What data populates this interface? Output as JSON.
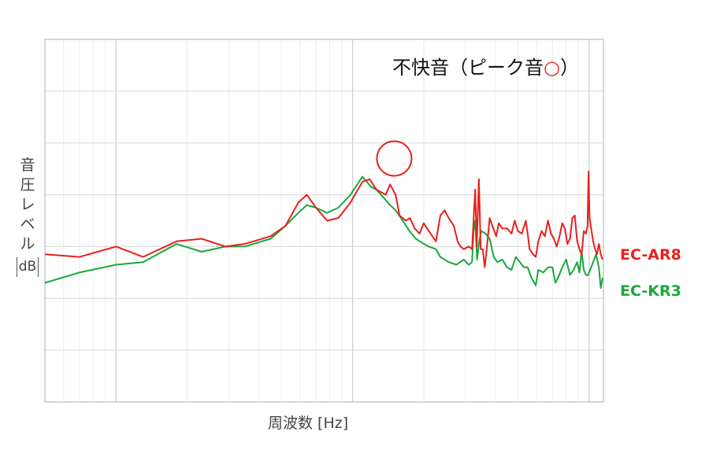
{
  "chart_data": {
    "type": "line",
    "title": "",
    "annotation": {
      "text": "不快音（ピーク音",
      "symbol": "○",
      "close": "）"
    },
    "xlabel": "周波数 [Hz]",
    "ylabel": {
      "chars": [
        "音",
        "圧",
        "レ",
        "ベ",
        "ル"
      ],
      "unit": "dB"
    },
    "x_scale": "log",
    "xlim": [
      0.5,
      115
    ],
    "ylim": [
      0,
      7
    ],
    "grid": true,
    "legend": "right",
    "peak_marker": {
      "x": 15,
      "y": 4.7
    },
    "series": [
      {
        "name": "EC-AR8",
        "color": "#e8201c",
        "points": [
          [
            0.5,
            2.85
          ],
          [
            0.7,
            2.8
          ],
          [
            1.0,
            3.0
          ],
          [
            1.3,
            2.8
          ],
          [
            1.8,
            3.1
          ],
          [
            2.3,
            3.15
          ],
          [
            2.9,
            3.0
          ],
          [
            3.5,
            3.05
          ],
          [
            4.5,
            3.2
          ],
          [
            5.2,
            3.4
          ],
          [
            5.9,
            3.85
          ],
          [
            6.4,
            4.0
          ],
          [
            7.0,
            3.75
          ],
          [
            7.8,
            3.5
          ],
          [
            8.7,
            3.55
          ],
          [
            9.8,
            3.85
          ],
          [
            11.0,
            4.25
          ],
          [
            11.8,
            4.3
          ],
          [
            12.6,
            4.1
          ],
          [
            13.2,
            4.05
          ],
          [
            13.8,
            4.0
          ],
          [
            14.4,
            4.2
          ],
          [
            15.2,
            4.0
          ],
          [
            15.8,
            3.6
          ],
          [
            16.8,
            3.5
          ],
          [
            17.5,
            3.55
          ],
          [
            18.3,
            3.35
          ],
          [
            19.2,
            3.25
          ],
          [
            20.0,
            3.45
          ],
          [
            21.0,
            3.3
          ],
          [
            22.5,
            3.1
          ],
          [
            23.5,
            3.6
          ],
          [
            24.5,
            3.7
          ],
          [
            25.5,
            3.55
          ],
          [
            26.8,
            3.4
          ],
          [
            27.8,
            3.1
          ],
          [
            28.6,
            3.0
          ],
          [
            29.5,
            2.95
          ],
          [
            31.0,
            3.0
          ],
          [
            32.0,
            2.95
          ],
          [
            33.0,
            4.1
          ],
          [
            33.5,
            3.0
          ],
          [
            34.2,
            4.3
          ],
          [
            34.8,
            2.95
          ],
          [
            35.5,
            2.95
          ],
          [
            36.2,
            2.6
          ],
          [
            37.0,
            3.0
          ],
          [
            38.0,
            3.55
          ],
          [
            39.0,
            3.4
          ],
          [
            40.5,
            3.2
          ],
          [
            41.5,
            3.45
          ],
          [
            43.0,
            3.35
          ],
          [
            45.0,
            3.35
          ],
          [
            47.0,
            3.25
          ],
          [
            48.5,
            3.5
          ],
          [
            50.0,
            3.3
          ],
          [
            52.0,
            3.25
          ],
          [
            54.0,
            3.5
          ],
          [
            55.0,
            3.25
          ],
          [
            56.0,
            2.95
          ],
          [
            58.0,
            2.85
          ],
          [
            59.5,
            2.8
          ],
          [
            61.0,
            3.1
          ],
          [
            63.0,
            3.3
          ],
          [
            65.0,
            3.2
          ],
          [
            67.0,
            3.5
          ],
          [
            69.0,
            3.25
          ],
          [
            71.0,
            3.15
          ],
          [
            73.0,
            3.0
          ],
          [
            75.0,
            3.2
          ],
          [
            77.0,
            3.45
          ],
          [
            79.0,
            3.35
          ],
          [
            81.0,
            3.05
          ],
          [
            83.0,
            3.15
          ],
          [
            85.0,
            3.55
          ],
          [
            87.0,
            3.6
          ],
          [
            89.0,
            3.1
          ],
          [
            91.0,
            2.95
          ],
          [
            93.0,
            2.85
          ],
          [
            95.0,
            3.3
          ],
          [
            97.0,
            3.25
          ],
          [
            98.5,
            3.4
          ],
          [
            99.5,
            4.45
          ],
          [
            100.5,
            3.55
          ],
          [
            102.0,
            3.35
          ],
          [
            104.0,
            3.1
          ],
          [
            106.0,
            2.95
          ],
          [
            108.0,
            2.85
          ],
          [
            110.0,
            3.05
          ],
          [
            112.0,
            2.85
          ],
          [
            114.0,
            2.75
          ]
        ]
      },
      {
        "name": "EC-KR3",
        "color": "#18a83c",
        "points": [
          [
            0.5,
            2.3
          ],
          [
            0.7,
            2.5
          ],
          [
            1.0,
            2.65
          ],
          [
            1.3,
            2.7
          ],
          [
            1.8,
            3.05
          ],
          [
            2.3,
            2.9
          ],
          [
            2.9,
            3.0
          ],
          [
            3.5,
            3.0
          ],
          [
            4.5,
            3.15
          ],
          [
            5.2,
            3.4
          ],
          [
            5.9,
            3.65
          ],
          [
            6.4,
            3.8
          ],
          [
            7.0,
            3.75
          ],
          [
            7.8,
            3.65
          ],
          [
            8.7,
            3.75
          ],
          [
            9.8,
            4.0
          ],
          [
            11.0,
            4.35
          ],
          [
            12.0,
            4.15
          ],
          [
            12.6,
            4.1
          ],
          [
            13.5,
            3.95
          ],
          [
            14.4,
            3.8
          ],
          [
            15.2,
            3.7
          ],
          [
            16.3,
            3.5
          ],
          [
            17.4,
            3.3
          ],
          [
            18.5,
            3.15
          ],
          [
            20.0,
            3.05
          ],
          [
            21.0,
            3.0
          ],
          [
            22.5,
            2.95
          ],
          [
            23.5,
            2.8
          ],
          [
            25.5,
            2.7
          ],
          [
            27.5,
            2.65
          ],
          [
            29.5,
            2.75
          ],
          [
            31.0,
            2.65
          ],
          [
            32.0,
            2.7
          ],
          [
            32.5,
            3.3
          ],
          [
            33.0,
            3.5
          ],
          [
            33.6,
            2.75
          ],
          [
            34.3,
            3.1
          ],
          [
            35.0,
            3.3
          ],
          [
            36.5,
            3.25
          ],
          [
            38.0,
            3.15
          ],
          [
            39.5,
            2.8
          ],
          [
            41.0,
            2.7
          ],
          [
            43.0,
            2.75
          ],
          [
            45.0,
            2.6
          ],
          [
            47.0,
            2.55
          ],
          [
            49.0,
            2.8
          ],
          [
            51.0,
            2.7
          ],
          [
            53.0,
            2.6
          ],
          [
            55.0,
            2.6
          ],
          [
            57.0,
            2.4
          ],
          [
            59.5,
            2.25
          ],
          [
            61.0,
            2.55
          ],
          [
            64.0,
            2.5
          ],
          [
            67.0,
            2.6
          ],
          [
            70.0,
            2.6
          ],
          [
            72.0,
            2.3
          ],
          [
            74.0,
            2.4
          ],
          [
            77.0,
            2.6
          ],
          [
            80.0,
            2.75
          ],
          [
            83.0,
            2.45
          ],
          [
            86.0,
            2.55
          ],
          [
            89.0,
            2.7
          ],
          [
            91.0,
            2.5
          ],
          [
            93.0,
            2.9
          ],
          [
            95.0,
            2.55
          ],
          [
            97.0,
            2.45
          ],
          [
            99.0,
            2.45
          ],
          [
            101.0,
            2.55
          ],
          [
            104.0,
            2.7
          ],
          [
            107.0,
            2.85
          ],
          [
            110.0,
            2.6
          ],
          [
            112.0,
            2.2
          ],
          [
            114.0,
            2.4
          ]
        ]
      }
    ]
  }
}
